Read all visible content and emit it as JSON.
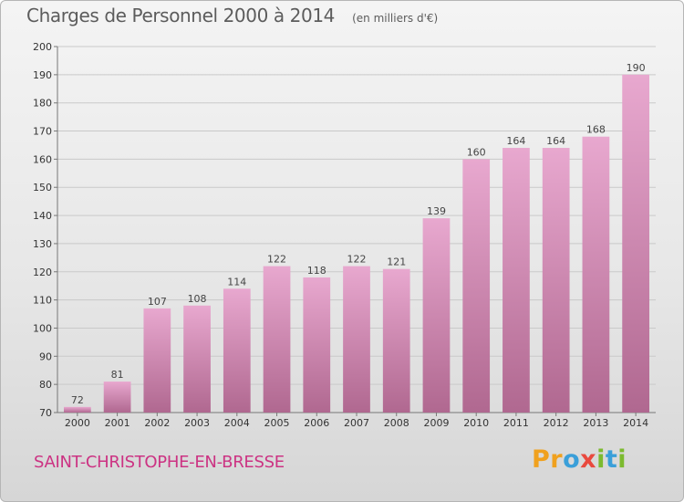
{
  "header": {
    "title": "Charges de Personnel 2000 à 2014",
    "subtitle": "(en milliers d'€)"
  },
  "footer": {
    "town": "SAINT-CHRISTOPHE-EN-BRESSE",
    "logo_parts": [
      "Pr",
      "o",
      "x",
      "i",
      "t",
      "i"
    ]
  },
  "colors": {
    "bar_light": "#e8a8cf",
    "bar_dark": "#b06890",
    "town": "#cc3383"
  },
  "chart_data": {
    "type": "bar",
    "title": "Charges de Personnel 2000 à 2014",
    "subtitle": "(en milliers d'€)",
    "categories": [
      "2000",
      "2001",
      "2002",
      "2003",
      "2004",
      "2005",
      "2006",
      "2007",
      "2008",
      "2009",
      "2010",
      "2011",
      "2012",
      "2013",
      "2014"
    ],
    "values": [
      72,
      81,
      107,
      108,
      114,
      122,
      118,
      122,
      121,
      139,
      160,
      164,
      164,
      168,
      190
    ],
    "ylim": [
      70,
      200
    ],
    "yticks": [
      70,
      80,
      90,
      100,
      110,
      120,
      130,
      140,
      150,
      160,
      170,
      180,
      190,
      200
    ],
    "grid": true,
    "data_labels": true
  }
}
